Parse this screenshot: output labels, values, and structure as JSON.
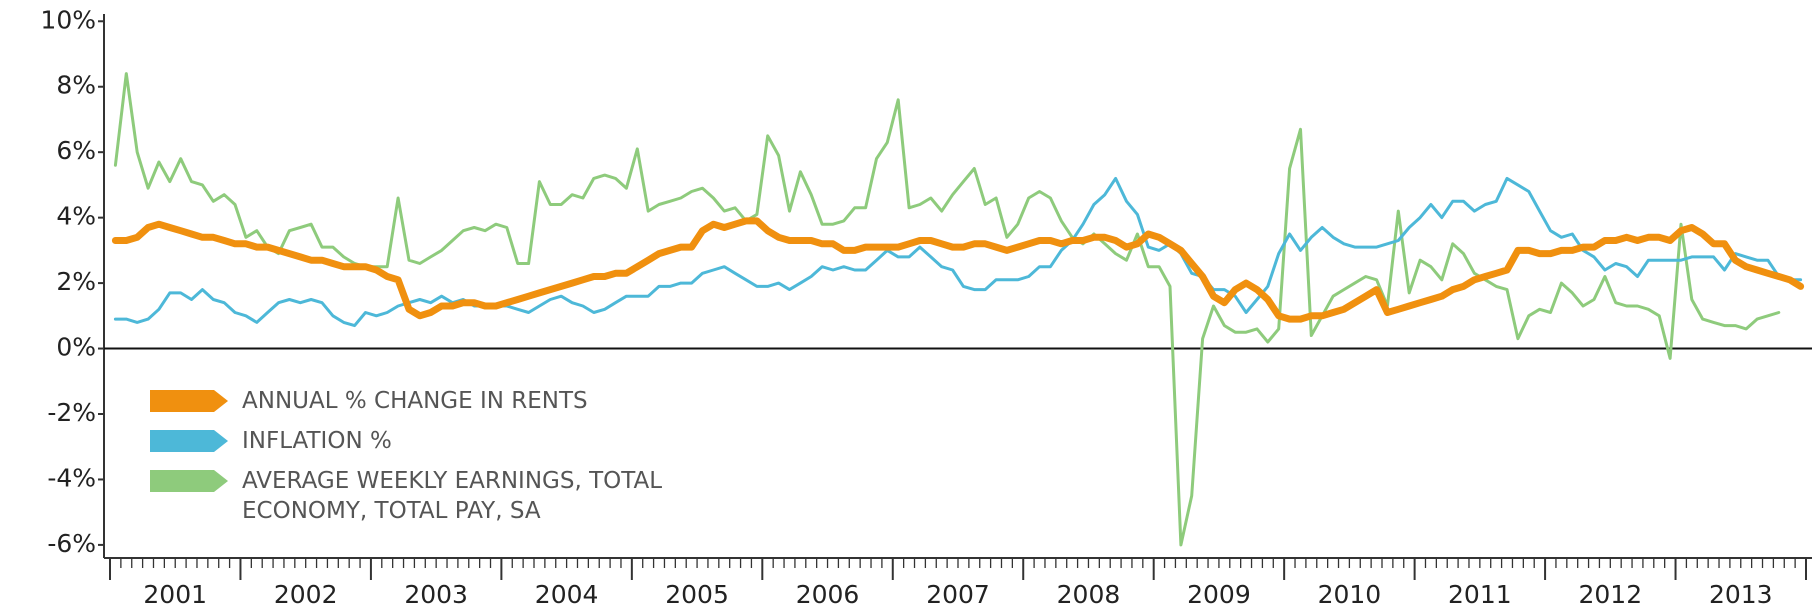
{
  "chart_data": {
    "type": "line",
    "categories": [
      null,
      null,
      null,
      null,
      null,
      null,
      "2001",
      null,
      null,
      null,
      null,
      null,
      null,
      null,
      null,
      null,
      null,
      null,
      "2002",
      null,
      null,
      null,
      null,
      null,
      null,
      null,
      null,
      null,
      null,
      null,
      "2003",
      null,
      null,
      null,
      null,
      null,
      null,
      null,
      null,
      null,
      null,
      null,
      "2004",
      null,
      null,
      null,
      null,
      null,
      null,
      null,
      null,
      null,
      null,
      null,
      "2005",
      null,
      null,
      null,
      null,
      null,
      null,
      null,
      null,
      null,
      null,
      null,
      "2006",
      null,
      null,
      null,
      null,
      null,
      null,
      null,
      null,
      null,
      null,
      null,
      "2007",
      null,
      null,
      null,
      null,
      null,
      null,
      null,
      null,
      null,
      null,
      null,
      "2008",
      null,
      null,
      null,
      null,
      null,
      null,
      null,
      null,
      null,
      null,
      null,
      "2009",
      null,
      null,
      null,
      null,
      null,
      null,
      null,
      null,
      null,
      null,
      null,
      "2010",
      null,
      null,
      null,
      null,
      null,
      null,
      null,
      null,
      null,
      null,
      null,
      "2011",
      null,
      null,
      null,
      null,
      null,
      null,
      null,
      null,
      null,
      null,
      null,
      "2012",
      null,
      null,
      null,
      null,
      null,
      null,
      null,
      null,
      null,
      null,
      null,
      "2013",
      null,
      null,
      null,
      null,
      null
    ],
    "series": [
      {
        "name": "ANNUAL % CHANGE IN RENTS",
        "color": "#f0900f",
        "width": 7,
        "values": [
          3.3,
          3.3,
          3.4,
          3.7,
          3.8,
          3.7,
          3.6,
          3.5,
          3.4,
          3.4,
          3.3,
          3.2,
          3.2,
          3.1,
          3.1,
          3.0,
          2.9,
          2.8,
          2.7,
          2.7,
          2.6,
          2.5,
          2.5,
          2.5,
          2.4,
          2.2,
          2.1,
          1.2,
          1.0,
          1.1,
          1.3,
          1.3,
          1.4,
          1.4,
          1.3,
          1.3,
          1.4,
          1.5,
          1.6,
          1.7,
          1.8,
          1.9,
          2.0,
          2.1,
          2.2,
          2.2,
          2.3,
          2.3,
          2.5,
          2.7,
          2.9,
          3.0,
          3.1,
          3.1,
          3.6,
          3.8,
          3.7,
          3.8,
          3.9,
          3.9,
          3.6,
          3.4,
          3.3,
          3.3,
          3.3,
          3.2,
          3.2,
          3.0,
          3.0,
          3.1,
          3.1,
          3.1,
          3.1,
          3.2,
          3.3,
          3.3,
          3.2,
          3.1,
          3.1,
          3.2,
          3.2,
          3.1,
          3.0,
          3.1,
          3.2,
          3.3,
          3.3,
          3.2,
          3.3,
          3.3,
          3.4,
          3.4,
          3.3,
          3.1,
          3.2,
          3.5,
          3.4,
          3.2,
          3.0,
          2.6,
          2.2,
          1.6,
          1.4,
          1.8,
          2.0,
          1.8,
          1.5,
          1.0,
          0.9,
          0.9,
          1.0,
          1.0,
          1.1,
          1.2,
          1.4,
          1.6,
          1.8,
          1.1,
          1.2,
          1.3,
          1.4,
          1.5,
          1.6,
          1.8,
          1.9,
          2.1,
          2.2,
          2.3,
          2.4,
          3.0,
          3.0,
          2.9,
          2.9,
          3.0,
          3.0,
          3.1,
          3.1,
          3.3,
          3.3,
          3.4,
          3.3,
          3.4,
          3.4,
          3.3,
          3.6,
          3.7,
          3.5,
          3.2,
          3.2,
          2.7,
          2.5,
          2.4,
          2.3,
          2.2,
          2.1,
          1.9
        ]
      },
      {
        "name": "INFLATION %",
        "color": "#4db8d8",
        "width": 3,
        "values": [
          0.9,
          0.9,
          0.8,
          0.9,
          1.2,
          1.7,
          1.7,
          1.5,
          1.8,
          1.5,
          1.4,
          1.1,
          1.0,
          0.8,
          1.1,
          1.4,
          1.5,
          1.4,
          1.5,
          1.4,
          1.0,
          0.8,
          0.7,
          1.1,
          1.0,
          1.1,
          1.3,
          1.4,
          1.5,
          1.4,
          1.6,
          1.4,
          1.5,
          1.3,
          1.3,
          1.3,
          1.3,
          1.2,
          1.1,
          1.3,
          1.5,
          1.6,
          1.4,
          1.3,
          1.1,
          1.2,
          1.4,
          1.6,
          1.6,
          1.6,
          1.9,
          1.9,
          2.0,
          2.0,
          2.3,
          2.4,
          2.5,
          2.3,
          2.1,
          1.9,
          1.9,
          2.0,
          1.8,
          2.0,
          2.2,
          2.5,
          2.4,
          2.5,
          2.4,
          2.4,
          2.7,
          3.0,
          2.8,
          2.8,
          3.1,
          2.8,
          2.5,
          2.4,
          1.9,
          1.8,
          1.8,
          2.1,
          2.1,
          2.1,
          2.2,
          2.5,
          2.5,
          3.0,
          3.3,
          3.8,
          4.4,
          4.7,
          5.2,
          4.5,
          4.1,
          3.1,
          3.0,
          3.2,
          2.9,
          2.3,
          2.2,
          1.8,
          1.8,
          1.6,
          1.1,
          1.5,
          1.9,
          2.9,
          3.5,
          3.0,
          3.4,
          3.7,
          3.4,
          3.2,
          3.1,
          3.1,
          3.1,
          3.2,
          3.3,
          3.7,
          4.0,
          4.4,
          4.0,
          4.5,
          4.5,
          4.2,
          4.4,
          4.5,
          5.2,
          5.0,
          4.8,
          4.2,
          3.6,
          3.4,
          3.5,
          3.0,
          2.8,
          2.4,
          2.6,
          2.5,
          2.2,
          2.7,
          2.7,
          2.7,
          2.7,
          2.8,
          2.8,
          2.8,
          2.4,
          2.9,
          2.8,
          2.7,
          2.7,
          2.2,
          2.1,
          2.1
        ]
      },
      {
        "name": "AVERAGE WEEKLY EARNINGS, TOTAL ECONOMY, TOTAL PAY, SA",
        "color": "#8ecb7c",
        "width": 3,
        "values": [
          5.6,
          8.4,
          6.0,
          4.9,
          5.7,
          5.1,
          5.8,
          5.1,
          5.0,
          4.5,
          4.7,
          4.4,
          3.4,
          3.6,
          3.1,
          2.9,
          3.6,
          3.7,
          3.8,
          3.1,
          3.1,
          2.8,
          2.6,
          2.5,
          2.5,
          2.5,
          4.6,
          2.7,
          2.6,
          2.8,
          3.0,
          3.3,
          3.6,
          3.7,
          3.6,
          3.8,
          3.7,
          2.6,
          2.6,
          5.1,
          4.4,
          4.4,
          4.7,
          4.6,
          5.2,
          5.3,
          5.2,
          4.9,
          6.1,
          4.2,
          4.4,
          4.5,
          4.6,
          4.8,
          4.9,
          4.6,
          4.2,
          4.3,
          3.9,
          4.1,
          6.5,
          5.9,
          4.2,
          5.4,
          4.7,
          3.8,
          3.8,
          3.9,
          4.3,
          4.3,
          5.8,
          6.3,
          7.6,
          4.3,
          4.4,
          4.6,
          4.2,
          4.7,
          5.1,
          5.5,
          4.4,
          4.6,
          3.4,
          3.8,
          4.6,
          4.8,
          4.6,
          3.9,
          3.4,
          3.2,
          3.5,
          3.2,
          2.9,
          2.7,
          3.5,
          2.5,
          2.5,
          1.9,
          -6.0,
          -4.5,
          0.3,
          1.3,
          0.7,
          0.5,
          0.5,
          0.6,
          0.2,
          0.6,
          5.5,
          6.7,
          0.4,
          1.0,
          1.6,
          1.8,
          2.0,
          2.2,
          2.1,
          1.3,
          4.2,
          1.7,
          2.7,
          2.5,
          2.1,
          3.2,
          2.9,
          2.3,
          2.1,
          1.9,
          1.8,
          0.3,
          1.0,
          1.2,
          1.1,
          2.0,
          1.7,
          1.3,
          1.5,
          2.2,
          1.4,
          1.3,
          1.3,
          1.2,
          1.0,
          -0.3,
          3.8,
          1.5,
          0.9,
          0.8,
          0.7,
          0.7,
          0.6,
          0.9,
          1.0,
          1.1,
          null,
          null
        ]
      }
    ],
    "ylim": [
      -6.4,
      10.1
    ],
    "yticks": [
      {
        "value": -6,
        "label": "-6%"
      },
      {
        "value": -4,
        "label": "-4%"
      },
      {
        "value": -2,
        "label": "-2%"
      },
      {
        "value": 0,
        "label": "0%"
      },
      {
        "value": 2,
        "label": "2%"
      },
      {
        "value": 4,
        "label": "4%"
      },
      {
        "value": 6,
        "label": "6%"
      },
      {
        "value": 8,
        "label": "8%"
      },
      {
        "value": 10,
        "label": "10%"
      }
    ],
    "grid": false,
    "legend": "lower left"
  }
}
